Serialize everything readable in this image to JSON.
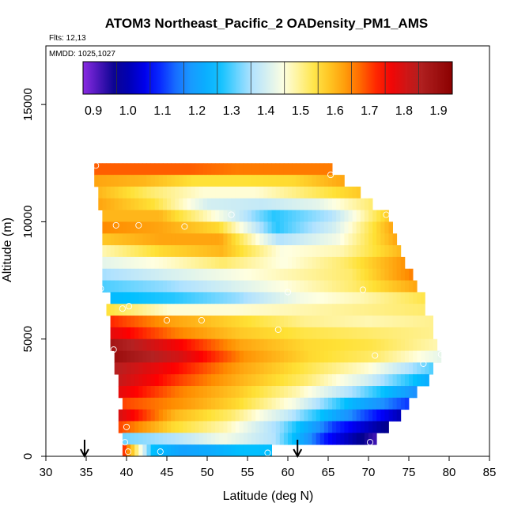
{
  "chart_data": {
    "type": "heatmap",
    "title": "ATOM3 Northeast_Pacific_2 OADensity_PM1_AMS",
    "flights_label": "Flts: 12,13",
    "dates_label": "MMDD: 1025,1027",
    "xlabel": "Latitude (deg N)",
    "ylabel": "Altitude (m)",
    "xlim": [
      30,
      85
    ],
    "ylim": [
      0,
      17500
    ],
    "x_ticks": [
      "30",
      "35",
      "40",
      "45",
      "50",
      "55",
      "60",
      "65",
      "70",
      "75",
      "80",
      "85"
    ],
    "y_ticks": [
      "0",
      "5000",
      "10000",
      "15000"
    ],
    "colorbar": {
      "range": [
        0.87,
        1.94
      ],
      "ticks": [
        "0.9",
        "1.0",
        "1.1",
        "1.2",
        "1.3",
        "1.4",
        "1.5",
        "1.6",
        "1.7",
        "1.8",
        "1.9"
      ],
      "palette": [
        "#8a2be2",
        "#00008b",
        "#0000ff",
        "#1e90ff",
        "#00bfff",
        "#b0e2ff",
        "#ffffe0",
        "#ffe135",
        "#ff8c00",
        "#ff0000",
        "#b22222",
        "#8b0000"
      ]
    },
    "arrows_latitude": [
      34.8,
      61.2
    ],
    "layers": [
      {
        "alt": 12250,
        "lat": [
          36.0,
          65.5
        ],
        "values": [
          1.68,
          1.68,
          1.68,
          1.66,
          1.66,
          1.66
        ]
      },
      {
        "alt": 11750,
        "lat": [
          36.0,
          67.0
        ],
        "values": [
          1.62,
          1.6,
          1.55,
          1.55,
          1.56,
          1.62
        ]
      },
      {
        "alt": 11250,
        "lat": [
          36.5,
          69.0
        ],
        "values": [
          1.6,
          1.52,
          1.46,
          1.46,
          1.52,
          1.58
        ]
      },
      {
        "alt": 10750,
        "lat": [
          36.5,
          70.5
        ],
        "values": [
          1.62,
          1.55,
          1.4,
          1.38,
          1.42,
          1.52
        ]
      },
      {
        "alt": 10250,
        "lat": [
          37.0,
          72.5
        ],
        "values": [
          1.6,
          1.6,
          1.45,
          1.28,
          1.36,
          1.58
        ]
      },
      {
        "alt": 9750,
        "lat": [
          37.0,
          73.0
        ],
        "values": [
          1.65,
          1.62,
          1.56,
          1.28,
          1.4,
          1.62
        ]
      },
      {
        "alt": 9250,
        "lat": [
          37.0,
          73.5
        ],
        "values": [
          1.58,
          1.62,
          1.62,
          1.36,
          1.44,
          1.62
        ]
      },
      {
        "alt": 8750,
        "lat": [
          37.0,
          74.0
        ],
        "values": [
          1.48,
          1.56,
          1.6,
          1.45,
          1.48,
          1.6
        ]
      },
      {
        "alt": 8250,
        "lat": [
          37.0,
          74.5
        ],
        "values": [
          1.42,
          1.46,
          1.52,
          1.45,
          1.52,
          1.64
        ]
      },
      {
        "alt": 7750,
        "lat": [
          37.0,
          75.5
        ],
        "values": [
          1.35,
          1.4,
          1.44,
          1.48,
          1.52,
          1.66
        ]
      },
      {
        "alt": 7250,
        "lat": [
          37.0,
          76.0
        ],
        "values": [
          1.3,
          1.34,
          1.4,
          1.46,
          1.52,
          1.62
        ]
      },
      {
        "alt": 6750,
        "lat": [
          38.0,
          77.0
        ],
        "values": [
          1.25,
          1.28,
          1.34,
          1.44,
          1.48,
          1.54
        ]
      },
      {
        "alt": 6250,
        "lat": [
          37.5,
          77.0
        ],
        "values": [
          1.55,
          1.46,
          1.46,
          1.48,
          1.5,
          1.52
        ]
      },
      {
        "alt": 5750,
        "lat": [
          38.0,
          78.0
        ],
        "values": [
          1.72,
          1.62,
          1.56,
          1.5,
          1.48,
          1.5
        ]
      },
      {
        "alt": 5250,
        "lat": [
          38.0,
          78.0
        ],
        "values": [
          1.78,
          1.66,
          1.58,
          1.54,
          1.52,
          1.5
        ]
      },
      {
        "alt": 4750,
        "lat": [
          38.0,
          78.5
        ],
        "values": [
          1.88,
          1.76,
          1.62,
          1.56,
          1.54,
          1.48
        ]
      },
      {
        "alt": 4250,
        "lat": [
          38.5,
          79.0
        ],
        "values": [
          1.9,
          1.8,
          1.64,
          1.56,
          1.52,
          1.42
        ]
      },
      {
        "alt": 3750,
        "lat": [
          38.5,
          78.0
        ],
        "values": [
          1.84,
          1.74,
          1.62,
          1.54,
          1.46,
          1.3
        ]
      },
      {
        "alt": 3250,
        "lat": [
          39.0,
          77.5
        ],
        "values": [
          1.82,
          1.7,
          1.6,
          1.52,
          1.4,
          1.22
        ]
      },
      {
        "alt": 2750,
        "lat": [
          39.0,
          76.0
        ],
        "values": [
          1.78,
          1.66,
          1.58,
          1.48,
          1.34,
          1.16
        ]
      },
      {
        "alt": 2250,
        "lat": [
          39.5,
          75.0
        ],
        "values": [
          1.7,
          1.64,
          1.56,
          1.44,
          1.24,
          1.1
        ]
      },
      {
        "alt": 1750,
        "lat": [
          39.0,
          74.0
        ],
        "values": [
          1.8,
          1.6,
          1.52,
          1.38,
          1.18,
          1.0
        ]
      },
      {
        "alt": 1250,
        "lat": [
          39.0,
          72.5
        ],
        "values": [
          1.7,
          1.56,
          1.48,
          1.34,
          1.1,
          0.96
        ]
      },
      {
        "alt": 750,
        "lat": [
          39.5,
          71.0
        ],
        "values": [
          1.32,
          1.36,
          1.44,
          1.36,
          1.08,
          0.92
        ]
      },
      {
        "alt": 250,
        "lat": [
          39.5,
          58.0
        ],
        "values": [
          1.74,
          1.26,
          1.2,
          1.22,
          1.26,
          1.26
        ]
      }
    ],
    "sample_points": [
      [
        36.2,
        12400
      ],
      [
        65.3,
        12000
      ],
      [
        72.2,
        10300
      ],
      [
        53.0,
        10300
      ],
      [
        38.7,
        9850
      ],
      [
        41.5,
        9850
      ],
      [
        47.2,
        9800
      ],
      [
        36.8,
        7150
      ],
      [
        69.3,
        7100
      ],
      [
        60.0,
        7000
      ],
      [
        39.5,
        6300
      ],
      [
        40.3,
        6400
      ],
      [
        45.0,
        5800
      ],
      [
        49.3,
        5800
      ],
      [
        58.8,
        5400
      ],
      [
        38.4,
        4550
      ],
      [
        70.8,
        4300
      ],
      [
        76.8,
        3950
      ],
      [
        79.5,
        3850
      ],
      [
        79.0,
        4350
      ],
      [
        40.0,
        1250
      ],
      [
        39.8,
        600
      ],
      [
        40.2,
        200
      ],
      [
        44.2,
        200
      ],
      [
        57.5,
        150
      ],
      [
        70.2,
        600
      ]
    ]
  }
}
